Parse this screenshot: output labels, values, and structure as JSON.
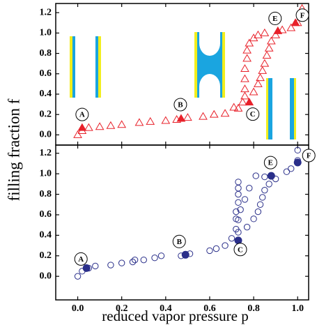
{
  "chart_data": [
    {
      "type": "scatter",
      "ylabel": "filling fraction f",
      "xlim": [
        -0.1,
        1.05
      ],
      "ylim": [
        -0.1,
        1.29
      ],
      "xticks": [
        {
          "value": 0,
          "label": "0.0"
        },
        0.2,
        0.4,
        0.6,
        0.8,
        {
          "value": 1,
          "label": "1.0"
        }
      ],
      "yticks": [
        {
          "value": 0,
          "label": "0.0"
        },
        0.2,
        0.4,
        0.6,
        0.8,
        {
          "value": 1,
          "label": "1.0"
        },
        1.2
      ],
      "series": [
        {
          "marker": "triangle",
          "filled": false,
          "color": "#e8212a",
          "x": [
            0.0,
            0.02,
            0.05,
            0.1,
            0.15,
            0.2,
            0.28,
            0.33,
            0.4,
            0.45,
            0.5,
            0.57,
            0.62,
            0.67,
            0.71,
            0.73,
            0.75,
            0.76,
            0.8,
            0.82,
            0.83,
            0.84,
            0.85,
            0.86,
            0.87,
            0.88,
            0.9,
            0.93,
            0.97,
            1.0,
            1.02,
            0.85,
            0.82,
            0.8,
            0.78,
            0.77,
            0.77,
            0.76,
            0.76,
            0.76
          ],
          "values": [
            0.0,
            0.04,
            0.07,
            0.08,
            0.09,
            0.1,
            0.12,
            0.13,
            0.14,
            0.15,
            0.17,
            0.18,
            0.2,
            0.21,
            0.27,
            0.26,
            0.32,
            0.38,
            0.42,
            0.5,
            0.56,
            0.63,
            0.7,
            0.78,
            0.85,
            0.92,
            0.98,
            1.03,
            1.05,
            1.1,
            1.24,
            1.0,
            0.98,
            0.95,
            0.9,
            0.83,
            0.75,
            0.65,
            0.55,
            0.45
          ]
        },
        {
          "marker": "triangle",
          "filled": true,
          "color": "#e8212a",
          "x": [
            0.02,
            0.47,
            0.78,
            0.91,
            0.99
          ],
          "values": [
            0.07,
            0.16,
            0.32,
            1.02,
            1.1
          ]
        }
      ],
      "annotations": [
        "A",
        "B",
        "C",
        "E",
        "F"
      ]
    },
    {
      "type": "scatter",
      "xlabel": "reduced vapor pressure p",
      "xlim": [
        -0.1,
        1.05
      ],
      "ylim": [
        -0.23,
        1.28
      ],
      "xticks": [
        {
          "value": 0,
          "label": "0.0"
        },
        0.2,
        0.4,
        0.6,
        0.8,
        {
          "value": 1,
          "label": "1.0"
        }
      ],
      "yticks": [
        {
          "value": 0,
          "label": "0.0"
        },
        0.2,
        0.4,
        0.6,
        0.8,
        {
          "value": 1,
          "label": "1.0"
        },
        1.2
      ],
      "series": [
        {
          "marker": "circle",
          "filled": false,
          "color": "#2a2f8a",
          "x": [
            0.0,
            0.02,
            0.05,
            0.08,
            0.15,
            0.2,
            0.25,
            0.26,
            0.3,
            0.35,
            0.38,
            0.47,
            0.51,
            0.6,
            0.63,
            0.67,
            0.7,
            0.73,
            0.77,
            0.8,
            0.82,
            0.83,
            0.84,
            0.85,
            0.87,
            0.9,
            0.95,
            0.97,
            1.0,
            1.0,
            0.85,
            0.81,
            0.78,
            0.76,
            0.74,
            0.73,
            0.72,
            0.73,
            0.73,
            0.73,
            0.73,
            0.72,
            0.72
          ],
          "values": [
            0.0,
            0.05,
            0.08,
            0.1,
            0.11,
            0.13,
            0.14,
            0.16,
            0.16,
            0.18,
            0.2,
            0.2,
            0.22,
            0.25,
            0.27,
            0.3,
            0.37,
            0.43,
            0.48,
            0.56,
            0.63,
            0.7,
            0.77,
            0.84,
            0.9,
            0.95,
            1.02,
            1.05,
            1.13,
            1.23,
            0.97,
            0.98,
            0.86,
            0.75,
            0.65,
            0.55,
            0.46,
            0.92,
            0.86,
            0.8,
            0.72,
            0.63,
            0.56
          ]
        },
        {
          "marker": "circle",
          "filled": true,
          "color": "#2a2f8a",
          "x": [
            0.04,
            0.49,
            0.73,
            0.88,
            1.0
          ],
          "values": [
            0.08,
            0.21,
            0.35,
            0.98,
            1.11
          ]
        }
      ],
      "annotations": [
        "A",
        "B",
        "C",
        "E",
        "F"
      ]
    }
  ]
}
